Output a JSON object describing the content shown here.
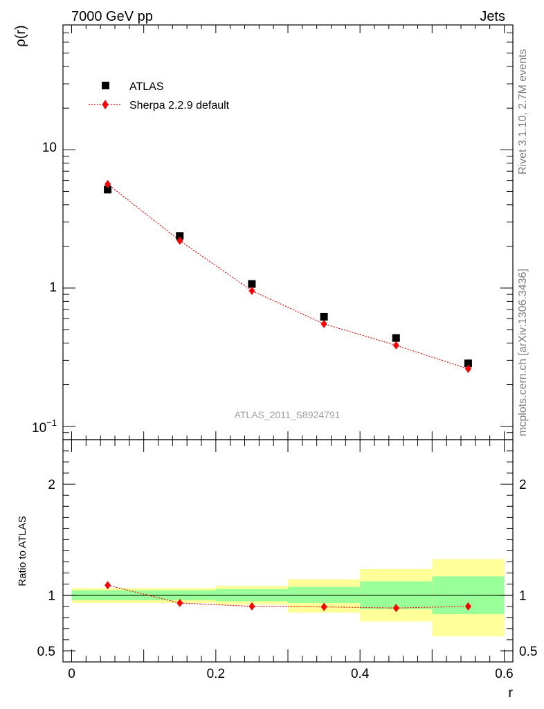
{
  "header": {
    "left": "7000 GeV pp",
    "right": "Jets"
  },
  "side_text": {
    "top": "Rivet 3.1.10,  2.7M events",
    "bottom": "mcplots.cern.ch [arXiv:1306.3436]"
  },
  "analysis_label": "ATLAS_2011_S8924791",
  "colors": {
    "data": "#000000",
    "mc": "#ff0000",
    "band_inner": "#99ff99",
    "band_outer": "#ffff99",
    "axis": "#000000",
    "analysis_label": "#a0a0a0",
    "side_text": "#808080"
  },
  "chart_data": [
    {
      "type": "scatter",
      "panel": "main",
      "ylabel": "ρ(r)",
      "yscale": "log",
      "ylim": [
        0.08,
        80
      ],
      "xlim": [
        -0.012,
        0.612
      ],
      "y_tick_labels": [
        "10",
        "1"
      ],
      "legend_position": "top-left",
      "series": [
        {
          "name": "ATLAS",
          "marker": "square",
          "x": [
            0.05,
            0.15,
            0.25,
            0.35,
            0.45,
            0.55
          ],
          "y": [
            5.15,
            2.38,
            1.07,
            0.62,
            0.435,
            0.285
          ]
        },
        {
          "name": "Sherpa 2.2.9 default",
          "marker": "diamond",
          "line": "dotted",
          "x": [
            0.05,
            0.15,
            0.25,
            0.35,
            0.45,
            0.55
          ],
          "y": [
            5.65,
            2.2,
            0.955,
            0.55,
            0.385,
            0.26
          ]
        }
      ]
    },
    {
      "type": "scatter",
      "panel": "ratio",
      "xlabel": "r",
      "ylabel": "Ratio to ATLAS",
      "ylim": [
        0.4,
        2.4
      ],
      "xlim": [
        -0.012,
        0.612
      ],
      "x_tick_labels": [
        "0",
        "0.2",
        "0.4",
        "0.6"
      ],
      "y_tick_labels": [
        "2",
        "1",
        "0.5"
      ],
      "bins": [
        {
          "lo": 0.0,
          "hi": 0.1,
          "inner": [
            0.955,
            1.045
          ],
          "outer": [
            0.93,
            1.065
          ]
        },
        {
          "lo": 0.1,
          "hi": 0.2,
          "inner": [
            0.955,
            1.045
          ],
          "outer": [
            0.93,
            1.065
          ]
        },
        {
          "lo": 0.2,
          "hi": 0.3,
          "inner": [
            0.945,
            1.055
          ],
          "outer": [
            0.915,
            1.085
          ]
        },
        {
          "lo": 0.3,
          "hi": 0.4,
          "inner": [
            0.93,
            1.075
          ],
          "outer": [
            0.845,
            1.145
          ]
        },
        {
          "lo": 0.4,
          "hi": 0.5,
          "inner": [
            0.875,
            1.125
          ],
          "outer": [
            0.765,
            1.235
          ]
        },
        {
          "lo": 0.5,
          "hi": 0.6,
          "inner": [
            0.83,
            1.17
          ],
          "outer": [
            0.63,
            1.325
          ]
        }
      ],
      "series": [
        {
          "name": "Sherpa 2.2.9 default",
          "x": [
            0.05,
            0.15,
            0.25,
            0.35,
            0.45,
            0.55
          ],
          "y": [
            1.09,
            0.93,
            0.9,
            0.895,
            0.885,
            0.9
          ]
        }
      ]
    }
  ]
}
